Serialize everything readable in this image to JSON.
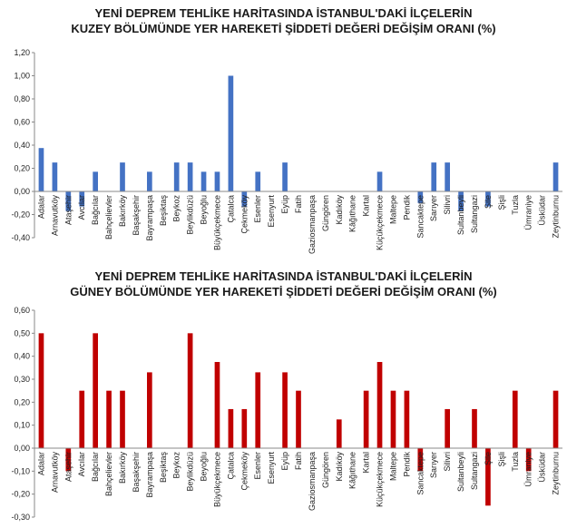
{
  "chart_data": [
    {
      "type": "bar",
      "title_line1": "YENİ DEPREM TEHLİKE HARİTASINDA İSTANBUL'DAKİ İLÇELERİN",
      "title_line2": "KUZEY BÖLÜMÜNDE YER HAREKETİ ŞİDDETİ DEĞERİ DEĞİŞİM ORANI (%)",
      "color": "#4472C4",
      "ylim": [
        -0.4,
        1.2
      ],
      "yticks": [
        "-0,40",
        "-0,20",
        "0,00",
        "0,20",
        "0,40",
        "0,60",
        "0,80",
        "1,00",
        "1,20"
      ],
      "categories": [
        "Adalar",
        "Arnavutköy",
        "Ataşehir",
        "Avcılar",
        "Bağcılar",
        "Bahçelievler",
        "Bakırköy",
        "Başakşehir",
        "Bayrampaşa",
        "Beşiktaş",
        "Beykoz",
        "Beylikdüzü",
        "Beyoğlu",
        "Büyükçekmece",
        "Çatalca",
        "Çekmeköy",
        "Esenler",
        "Esenyurt",
        "Eyüp",
        "Fatih",
        "Gaziosmanpaşa",
        "Güngören",
        "Kadıköy",
        "Kâğıthane",
        "Kartal",
        "Küçükçekmece",
        "Maltepe",
        "Pendik",
        "Sancaktepe",
        "Sarıyer",
        "Silivri",
        "Sultanbeyli",
        "Sultangazi",
        "Şile",
        "Şişli",
        "Tuzla",
        "Ümraniye",
        "Üsküdar",
        "Zeytinburnu"
      ],
      "values": [
        0.375,
        0.25,
        -0.17,
        -0.13,
        0.17,
        0,
        0.25,
        0,
        0.17,
        0,
        0.25,
        0.25,
        0.17,
        0.17,
        1.0,
        -0.13,
        0.17,
        0,
        0.25,
        0,
        0,
        0,
        0,
        0,
        0,
        0.17,
        0,
        0,
        -0.1,
        0.25,
        0.25,
        -0.17,
        0,
        -0.13,
        0,
        0,
        0,
        0,
        0.25
      ]
    },
    {
      "type": "bar",
      "title_line1": "YENİ DEPREM TEHLİKE HARİTASINDA İSTANBUL'DAKİ İLÇELERİN",
      "title_line2": "GÜNEY BÖLÜMÜNDE YER HAREKETİ ŞİDDETİ DEĞERİ DEĞİŞİM ORANI (%)",
      "color": "#C00000",
      "ylim": [
        -0.3,
        0.6
      ],
      "yticks": [
        "-0,30",
        "-0,20",
        "-0,10",
        "0,00",
        "0,10",
        "0,20",
        "0,30",
        "0,40",
        "0,50",
        "0,60"
      ],
      "categories": [
        "Adalar",
        "Arnavutköy",
        "Ataşehir",
        "Avcılar",
        "Bağcılar",
        "Bahçelievler",
        "Bakırköy",
        "Başakşehir",
        "Bayrampaşa",
        "Beşiktaş",
        "Beykoz",
        "Beylikdüzü",
        "Beyoğlu",
        "Büyükçekmece",
        "Çatalca",
        "Çekmeköy",
        "Esenler",
        "Esenyurt",
        "Eyüp",
        "Fatih",
        "Gaziosmanpaşa",
        "Güngören",
        "Kadıköy",
        "Kâğıthane",
        "Kartal",
        "Küçükçekmece",
        "Maltepe",
        "Pendik",
        "Sancaktepe",
        "Sarıyer",
        "Silivri",
        "Sultanbeyli",
        "Sultangazi",
        "Şile",
        "Şişli",
        "Tuzla",
        "Ümraniye",
        "Üsküdar",
        "Zeytinburnu"
      ],
      "values": [
        0.5,
        0,
        -0.1,
        0.25,
        0.5,
        0.25,
        0.25,
        0,
        0.33,
        0,
        0,
        0.5,
        0,
        0.375,
        0.17,
        0.17,
        0.33,
        0,
        0.33,
        0.25,
        0,
        0,
        0.125,
        0,
        0.25,
        0.375,
        0.25,
        0.25,
        -0.1,
        0,
        0.17,
        0,
        0.17,
        -0.25,
        0,
        0.25,
        -0.1,
        0,
        0.25
      ]
    }
  ]
}
